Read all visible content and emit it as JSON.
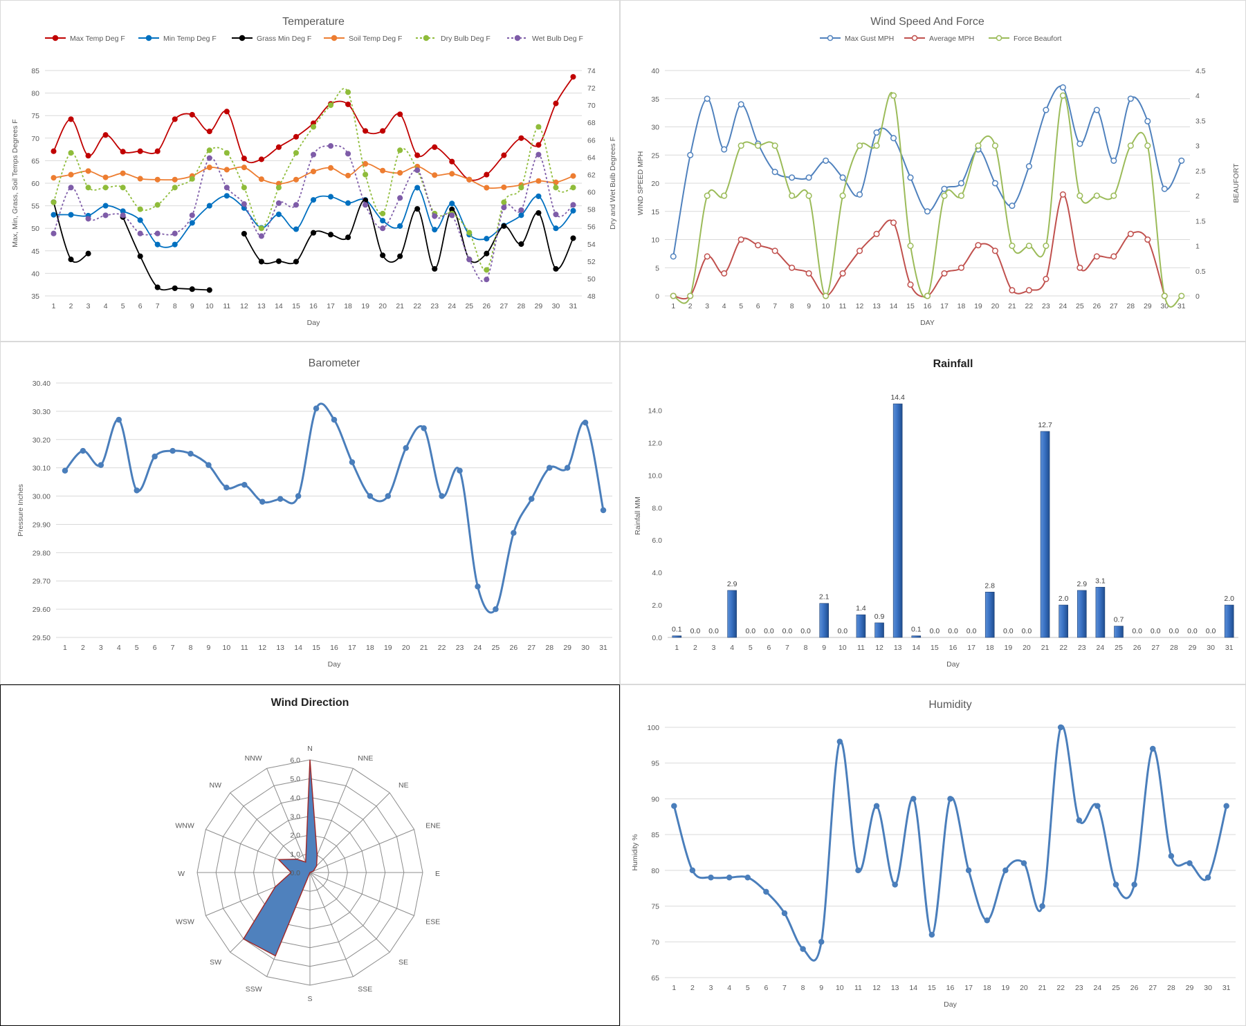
{
  "chart_data": [
    {
      "id": "temperature",
      "type": "line",
      "title": "Temperature",
      "xlabel": "Day",
      "ylabel": "Max, Min, Grass, Soil Temps Degrees F",
      "y2label": "Dry and Wet Bulb Degrees F",
      "categories": [
        "1",
        "2",
        "3",
        "4",
        "5",
        "6",
        "7",
        "8",
        "9",
        "10",
        "11",
        "12",
        "13",
        "14",
        "15",
        "16",
        "17",
        "18",
        "19",
        "20",
        "21",
        "22",
        "23",
        "24",
        "25",
        "26",
        "27",
        "28",
        "29",
        "30",
        "31"
      ],
      "ylim": [
        35,
        85
      ],
      "yticks": [
        35,
        40,
        45,
        50,
        55,
        60,
        65,
        70,
        75,
        80,
        85
      ],
      "y2lim": [
        48,
        74
      ],
      "y2ticks": [
        48,
        50,
        52,
        54,
        56,
        58,
        60,
        62,
        64,
        66,
        68,
        70,
        72,
        74
      ],
      "grid": true,
      "legend": "top",
      "series": [
        {
          "name": "Max Temp Deg F",
          "color": "#c00000",
          "axis": "left",
          "dashed": false,
          "values": [
            67.1,
            74.2,
            66.1,
            70.7,
            67.0,
            67.1,
            67.1,
            74.2,
            75.2,
            71.5,
            75.9,
            65.5,
            65.3,
            68.0,
            70.3,
            73.3,
            77.6,
            77.5,
            71.6,
            71.6,
            75.3,
            66.2,
            68.0,
            64.8,
            60.8,
            61.9,
            66.2,
            70.0,
            68.5,
            77.7,
            83.6
          ]
        },
        {
          "name": "Min Temp Deg F",
          "color": "#0070c0",
          "axis": "left",
          "dashed": false,
          "values": [
            53.0,
            53.0,
            52.8,
            55.0,
            53.8,
            51.8,
            46.4,
            46.4,
            51.2,
            55.0,
            57.2,
            54.5,
            50.1,
            53.1,
            49.8,
            56.3,
            57.0,
            55.6,
            56.3,
            51.7,
            50.5,
            59.0,
            49.7,
            55.5,
            48.6,
            47.7,
            50.6,
            52.9,
            57.1,
            50.0,
            53.9
          ]
        },
        {
          "name": "Grass Min Deg F",
          "color": "#000000",
          "axis": "left",
          "dashed": false,
          "values": [
            55.8,
            43.1,
            44.4,
            null,
            52.5,
            43.8,
            36.9,
            36.7,
            36.5,
            36.3,
            null,
            48.8,
            42.6,
            42.7,
            42.6,
            49.0,
            48.6,
            48.0,
            56.2,
            44.0,
            43.8,
            54.3,
            41.0,
            54.2,
            43.1,
            44.4,
            50.5,
            46.5,
            53.4,
            41.0,
            47.8
          ]
        },
        {
          "name": "Soil Temp Deg F",
          "color": "#ed7d31",
          "axis": "left",
          "dashed": false,
          "values": [
            61.2,
            61.9,
            62.7,
            61.3,
            62.2,
            61.0,
            60.8,
            60.8,
            61.6,
            63.5,
            63.0,
            63.5,
            60.9,
            59.9,
            60.8,
            62.6,
            63.4,
            61.7,
            64.3,
            62.8,
            62.3,
            63.7,
            61.8,
            62.1,
            60.8,
            59.0,
            59.1,
            59.6,
            60.5,
            60.2,
            61.6
          ]
        },
        {
          "name": "Dry Bulb Deg F",
          "color": "#8fbc3a",
          "axis": "right",
          "dashed": true,
          "values": [
            58.8,
            64.5,
            60.5,
            60.5,
            60.5,
            58.0,
            58.5,
            60.5,
            61.5,
            64.8,
            64.5,
            60.5,
            55.8,
            60.5,
            64.5,
            67.5,
            70.0,
            71.5,
            62.0,
            57.5,
            64.8,
            62.5,
            57.5,
            57.5,
            55.3,
            51.0,
            58.8,
            60.5,
            67.5,
            60.5,
            60.5
          ]
        },
        {
          "name": "Wet Bulb Deg F",
          "color": "#7e5ca8",
          "axis": "right",
          "dashed": true,
          "values": [
            55.2,
            60.5,
            56.9,
            57.3,
            57.3,
            55.2,
            55.2,
            55.2,
            57.3,
            63.9,
            60.5,
            58.6,
            54.9,
            58.7,
            58.5,
            64.3,
            65.3,
            64.4,
            58.5,
            55.8,
            59.3,
            62.5,
            57.2,
            57.3,
            52.2,
            49.9,
            58.2,
            57.9,
            64.3,
            57.4,
            58.5
          ]
        }
      ]
    },
    {
      "id": "wind_speed",
      "type": "line",
      "title": "Wind Speed And Force",
      "xlabel": "DAY",
      "ylabel": "WIND SPEED MPH",
      "y2label": "BEAUFORT",
      "categories": [
        "1",
        "2",
        "3",
        "4",
        "5",
        "6",
        "7",
        "8",
        "9",
        "10",
        "11",
        "12",
        "13",
        "14",
        "15",
        "16",
        "17",
        "18",
        "19",
        "20",
        "21",
        "22",
        "23",
        "24",
        "25",
        "26",
        "27",
        "28",
        "29",
        "30",
        "31"
      ],
      "ylim": [
        0,
        40
      ],
      "yticks": [
        0,
        5,
        10,
        15,
        20,
        25,
        30,
        35,
        40
      ],
      "y2lim": [
        0,
        4.5
      ],
      "y2ticks": [
        "0",
        "0.5",
        "1",
        "1.5",
        "2",
        "2.5",
        "3",
        "3.5",
        "4",
        "4.5"
      ],
      "grid": true,
      "legend": "top",
      "series": [
        {
          "name": "Max Gust MPH",
          "color": "#4f81bd",
          "axis": "left",
          "values": [
            7,
            25,
            35,
            26,
            34,
            27,
            22,
            21,
            21,
            24,
            21,
            18,
            29,
            28,
            21,
            15,
            19,
            20,
            26,
            20,
            16,
            23,
            33,
            37,
            27,
            33,
            24,
            35,
            31,
            19,
            24
          ]
        },
        {
          "name": "Average MPH",
          "color": "#c0504d",
          "axis": "left",
          "values": [
            0,
            0,
            7,
            4,
            10,
            9,
            8,
            5,
            4,
            0,
            4,
            8,
            11,
            13,
            2,
            0,
            4,
            5,
            9,
            8,
            1,
            1,
            3,
            18,
            5,
            7,
            7,
            11,
            10,
            0,
            null
          ]
        },
        {
          "name": "Force Beaufort",
          "color": "#9bbb59",
          "axis": "right",
          "values": [
            0,
            0,
            2,
            2,
            3,
            3,
            3,
            2,
            2,
            0,
            2,
            3,
            3,
            4,
            1,
            0,
            2,
            2,
            3,
            3,
            1,
            1,
            1,
            4,
            2,
            2,
            2,
            3,
            3,
            0,
            0
          ]
        }
      ]
    },
    {
      "id": "barometer",
      "type": "line",
      "title": "Barometer",
      "xlabel": "Day",
      "ylabel": "Pressure Inches",
      "categories": [
        "1",
        "2",
        "3",
        "4",
        "5",
        "6",
        "7",
        "8",
        "9",
        "10",
        "11",
        "12",
        "13",
        "14",
        "15",
        "16",
        "17",
        "18",
        "19",
        "20",
        "21",
        "22",
        "23",
        "24",
        "25",
        "26",
        "27",
        "28",
        "29",
        "30",
        "31"
      ],
      "ylim": [
        29.5,
        30.4
      ],
      "yticks": [
        "29.50",
        "29.60",
        "29.70",
        "29.80",
        "29.90",
        "30.00",
        "30.10",
        "30.20",
        "30.30",
        "30.40"
      ],
      "grid": true,
      "series": [
        {
          "name": "",
          "color": "#4a7ebb",
          "values": [
            30.09,
            30.16,
            30.11,
            30.27,
            30.02,
            30.14,
            30.16,
            30.15,
            30.11,
            30.03,
            30.04,
            29.98,
            29.99,
            30.0,
            30.31,
            30.27,
            30.12,
            30.0,
            30.0,
            30.17,
            30.24,
            30.0,
            30.09,
            29.68,
            29.6,
            29.87,
            29.99,
            30.1,
            30.1,
            30.26,
            29.95
          ]
        }
      ]
    },
    {
      "id": "rainfall",
      "type": "bar",
      "title": "Rainfall",
      "xlabel": "Day",
      "ylabel": "Rainfall MM",
      "categories": [
        "1",
        "2",
        "3",
        "4",
        "5",
        "6",
        "7",
        "8",
        "9",
        "10",
        "11",
        "12",
        "13",
        "14",
        "15",
        "16",
        "17",
        "18",
        "19",
        "20",
        "21",
        "22",
        "23",
        "24",
        "25",
        "26",
        "27",
        "28",
        "29",
        "30",
        "31"
      ],
      "ylim": [
        0,
        15
      ],
      "yticks": [
        "0.0",
        "2.0",
        "4.0",
        "6.0",
        "8.0",
        "10.0",
        "12.0",
        "14.0"
      ],
      "grid": false,
      "values": [
        0.1,
        0.0,
        0.0,
        2.9,
        0.0,
        0.0,
        0.0,
        0.0,
        2.1,
        0.0,
        1.4,
        0.9,
        14.4,
        0.1,
        0.0,
        0.0,
        0.0,
        2.8,
        0.0,
        0.0,
        12.7,
        2.0,
        2.9,
        3.1,
        0.7,
        0.0,
        0.0,
        0.0,
        0.0,
        0.0,
        2.0
      ],
      "labels": [
        "0.1",
        "0.0",
        "0.0",
        "2.9",
        "0.0",
        "0.0",
        "0.0",
        "0.0",
        "2.1",
        "0.0",
        "1.4",
        "0.9",
        "14.4",
        "0.1",
        "0.0",
        "0.0",
        "0.0",
        "2.8",
        "0.0",
        "0.0",
        "12.7",
        "2.0",
        "2.9",
        "3.1",
        "0.7",
        "0.0",
        "0.0",
        "0.0",
        "0.0",
        "0.0",
        "2.0"
      ],
      "color": "#2e5f9e"
    },
    {
      "id": "wind_direction",
      "type": "radar",
      "title": "Wind Direction",
      "directions": [
        "N",
        "NNE",
        "NE",
        "ENE",
        "E",
        "ESE",
        "SE",
        "SSE",
        "S",
        "SSW",
        "SW",
        "WSW",
        "W",
        "WNW",
        "NW",
        "NNW"
      ],
      "values": [
        6.0,
        1.0,
        0.5,
        0.2,
        0.0,
        0.0,
        0.0,
        0.0,
        0.0,
        4.8,
        5.0,
        2.0,
        1.0,
        1.8,
        1.0,
        0.6
      ],
      "rlim": [
        0,
        6
      ],
      "rticks": [
        "0.0",
        "1.0",
        "2.0",
        "3.0",
        "4.0",
        "5.0",
        "6.0"
      ],
      "fill": "#4f81bd",
      "stroke": "#9e2a2b"
    },
    {
      "id": "humidity",
      "type": "line",
      "title": "Humidity",
      "xlabel": "Day",
      "ylabel": "Humidity %",
      "categories": [
        "1",
        "2",
        "3",
        "4",
        "5",
        "6",
        "7",
        "8",
        "9",
        "10",
        "11",
        "12",
        "13",
        "14",
        "15",
        "16",
        "17",
        "18",
        "19",
        "20",
        "21",
        "22",
        "23",
        "24",
        "25",
        "26",
        "27",
        "28",
        "29",
        "30",
        "31"
      ],
      "ylim": [
        65,
        100
      ],
      "yticks": [
        65,
        70,
        75,
        80,
        85,
        90,
        95,
        100
      ],
      "grid": true,
      "series": [
        {
          "name": "",
          "color": "#4a7ebb",
          "values": [
            89,
            80,
            79,
            79,
            79,
            77,
            74,
            69,
            70,
            98,
            80,
            89,
            78,
            90,
            71,
            90,
            80,
            73,
            80,
            81,
            75,
            100,
            87,
            89,
            78,
            78,
            97,
            82,
            81,
            79,
            89
          ]
        }
      ]
    }
  ]
}
